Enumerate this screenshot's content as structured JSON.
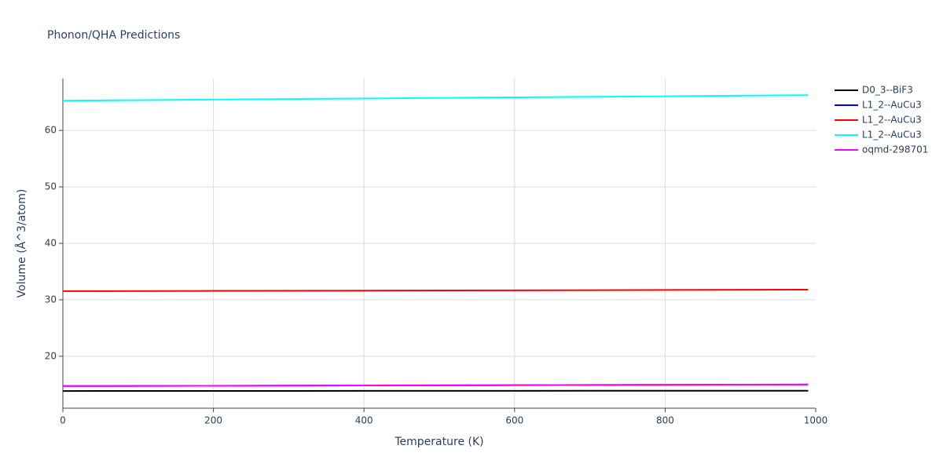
{
  "chart_data": {
    "type": "line",
    "title": "Phonon/QHA Predictions",
    "x_label": "Temperature (K)",
    "y_label": "Volume (Å^3/atom)",
    "x": [
      0,
      200,
      400,
      600,
      800,
      990
    ],
    "series": [
      {
        "name": "D0_3--BiF3",
        "color": "#000000",
        "values": [
          13.85,
          13.86,
          13.87,
          13.88,
          13.89,
          13.9
        ]
      },
      {
        "name": "L1_2--AuCu3",
        "color": "#0000ff",
        "values": [
          14.72,
          14.77,
          14.83,
          14.88,
          14.94,
          15.0
        ]
      },
      {
        "name": "L1_2--AuCu3",
        "color": "#ff0000",
        "values": [
          31.53,
          31.58,
          31.63,
          31.68,
          31.74,
          31.8
        ]
      },
      {
        "name": "L1_2--AuCu3",
        "color": "#00ffff",
        "values": [
          65.28,
          65.47,
          65.66,
          65.86,
          66.06,
          66.25
        ]
      },
      {
        "name": "oqmd-298701",
        "color": "#ff00ff",
        "values": [
          14.72,
          14.77,
          14.83,
          14.88,
          14.94,
          15.0
        ]
      }
    ],
    "xlim": [
      0,
      1000
    ],
    "xticks": [
      0,
      200,
      400,
      600,
      800,
      1000
    ],
    "ylim": [
      10.8,
      69.2
    ],
    "yticks": [
      20,
      30,
      40,
      50,
      60
    ],
    "grid": true,
    "legend": "right"
  }
}
